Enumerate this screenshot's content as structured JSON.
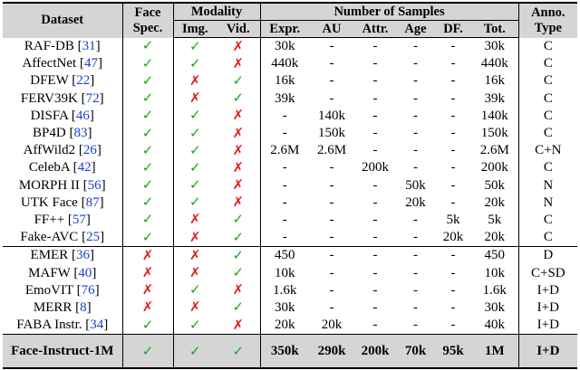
{
  "header": {
    "dataset": "Dataset",
    "face_spec": "Face Spec.",
    "modality": "Modality",
    "img": "Img.",
    "vid": "Vid.",
    "num_samples": "Number of Samples",
    "expr": "Expr.",
    "au": "AU",
    "attr": "Attr.",
    "age": "Age",
    "df": "DF.",
    "tot": "Tot.",
    "anno_type": "Anno. Type"
  },
  "rows": [
    {
      "name": "RAF-DB",
      "ref": "31",
      "face": true,
      "img": true,
      "vid": false,
      "expr": "30k",
      "au": "-",
      "attr": "-",
      "age": "-",
      "df": "-",
      "tot": "30k",
      "anno": "C"
    },
    {
      "name": "AffectNet",
      "ref": "47",
      "face": true,
      "img": true,
      "vid": false,
      "expr": "440k",
      "au": "-",
      "attr": "-",
      "age": "-",
      "df": "-",
      "tot": "440k",
      "anno": "C"
    },
    {
      "name": "DFEW",
      "ref": "22",
      "face": true,
      "img": false,
      "vid": true,
      "expr": "16k",
      "au": "-",
      "attr": "-",
      "age": "-",
      "df": "-",
      "tot": "16k",
      "anno": "C"
    },
    {
      "name": "FERV39K",
      "ref": "72",
      "face": true,
      "img": false,
      "vid": true,
      "expr": "39k",
      "au": "-",
      "attr": "-",
      "age": "-",
      "df": "-",
      "tot": "39k",
      "anno": "C"
    },
    {
      "name": "DISFA",
      "ref": "46",
      "face": true,
      "img": true,
      "vid": false,
      "expr": "-",
      "au": "140k",
      "attr": "-",
      "age": "-",
      "df": "-",
      "tot": "140k",
      "anno": "C"
    },
    {
      "name": "BP4D",
      "ref": "83",
      "face": true,
      "img": true,
      "vid": false,
      "expr": "-",
      "au": "150k",
      "attr": "-",
      "age": "-",
      "df": "-",
      "tot": "150k",
      "anno": "C"
    },
    {
      "name": "AffWild2",
      "ref": "26",
      "face": true,
      "img": true,
      "vid": false,
      "expr": "2.6M",
      "au": "2.6M",
      "attr": "-",
      "age": "-",
      "df": "-",
      "tot": "2.6M",
      "anno": "C+N"
    },
    {
      "name": "CelebA",
      "ref": "42",
      "face": true,
      "img": true,
      "vid": false,
      "expr": "-",
      "au": "-",
      "attr": "200k",
      "age": "-",
      "df": "-",
      "tot": "200k",
      "anno": "C"
    },
    {
      "name": "MORPH II",
      "ref": "56",
      "face": true,
      "img": true,
      "vid": false,
      "expr": "-",
      "au": "-",
      "attr": "-",
      "age": "50k",
      "df": "-",
      "tot": "50k",
      "anno": "N"
    },
    {
      "name": "UTK Face",
      "ref": "87",
      "face": true,
      "img": true,
      "vid": false,
      "expr": "-",
      "au": "-",
      "attr": "-",
      "age": "20k",
      "df": "-",
      "tot": "20k",
      "anno": "N"
    },
    {
      "name": "FF++",
      "ref": "57",
      "face": true,
      "img": false,
      "vid": true,
      "expr": "-",
      "au": "-",
      "attr": "-",
      "age": "-",
      "df": "5k",
      "tot": "5k",
      "anno": "C"
    },
    {
      "name": "Fake-AVC",
      "ref": "25",
      "face": true,
      "img": false,
      "vid": true,
      "expr": "-",
      "au": "-",
      "attr": "-",
      "age": "-",
      "df": "20k",
      "tot": "20k",
      "anno": "C"
    },
    {
      "name": "EMER",
      "ref": "36",
      "face": false,
      "img": false,
      "vid": true,
      "expr": "450",
      "au": "-",
      "attr": "-",
      "age": "-",
      "df": "-",
      "tot": "450",
      "anno": "D"
    },
    {
      "name": "MAFW",
      "ref": "40",
      "face": false,
      "img": false,
      "vid": true,
      "expr": "10k",
      "au": "-",
      "attr": "-",
      "age": "-",
      "df": "-",
      "tot": "10k",
      "anno": "C+SD"
    },
    {
      "name": "EmoVIT",
      "ref": "76",
      "face": false,
      "img": true,
      "vid": false,
      "expr": "1.6k",
      "au": "-",
      "attr": "-",
      "age": "-",
      "df": "-",
      "tot": "1.6k",
      "anno": "I+D"
    },
    {
      "name": "MERR",
      "ref": "8",
      "face": false,
      "img": false,
      "vid": true,
      "expr": "30k",
      "au": "-",
      "attr": "-",
      "age": "-",
      "df": "-",
      "tot": "30k",
      "anno": "I+D"
    },
    {
      "name": "FABA Instr.",
      "ref": "34",
      "face": true,
      "img": true,
      "vid": false,
      "expr": "20k",
      "au": "20k",
      "attr": "-",
      "age": "-",
      "df": "-",
      "tot": "40k",
      "anno": "I+D"
    }
  ],
  "final": {
    "name": "Face-Instruct-1M",
    "face": true,
    "img": true,
    "vid": true,
    "expr": "350k",
    "au": "290k",
    "attr": "200k",
    "age": "70k",
    "df": "95k",
    "tot": "1M",
    "anno": "I+D"
  },
  "symbols": {
    "check": "✓",
    "cross": "✗"
  },
  "colors": {
    "check": "#1fa31f",
    "cross": "#e0201a",
    "ref": "#1a3fcc",
    "header_bg": "#d5d5d5"
  }
}
